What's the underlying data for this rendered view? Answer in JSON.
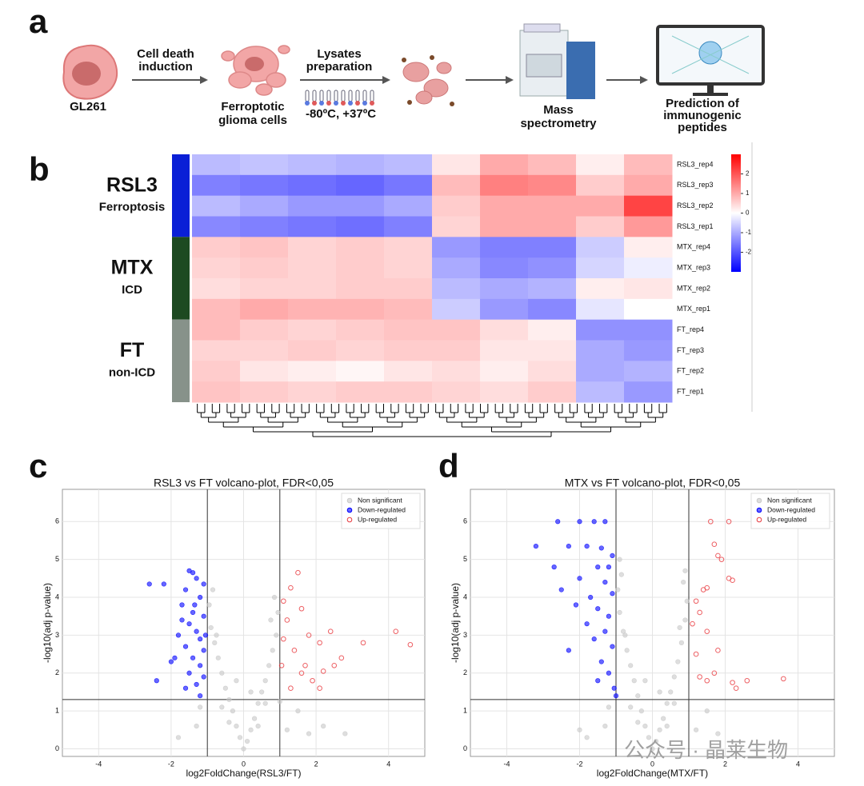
{
  "workflow": {
    "panel_label": "a",
    "cell": "GL261",
    "step1": [
      "Cell death",
      "induction"
    ],
    "ferroptotic": [
      "Ferroptotic",
      "glioma cells"
    ],
    "step2": [
      "Lysates",
      "preparation"
    ],
    "temperature": "-80ºC, +37ºC",
    "mass_spec": [
      "Mass",
      "spectrometry"
    ],
    "prediction": [
      "Prediction of",
      "immunogenic",
      "peptides"
    ]
  },
  "watermark": "公众号 · 晶莱生物",
  "chart_data": [
    {
      "type": "heatmap",
      "panel_label": "b",
      "rows": [
        "RSL3_rep4",
        "RSL3_rep3",
        "RSL3_rep2",
        "RSL3_rep1",
        "MTX_rep4",
        "MTX_rep3",
        "MTX_rep2",
        "MTX_rep1",
        "FT_rep4",
        "FT_rep3",
        "FT_rep2",
        "FT_rep1"
      ],
      "categories": [
        null,
        null,
        null,
        null,
        null,
        null,
        null,
        null,
        null,
        null
      ],
      "values": [
        [
          -0.8,
          -0.7,
          -0.8,
          -0.9,
          -0.8,
          0.3,
          1.0,
          0.8,
          0.2,
          0.8
        ],
        [
          -1.5,
          -1.6,
          -1.7,
          -1.8,
          -1.6,
          0.8,
          1.5,
          1.4,
          0.6,
          1.0
        ],
        [
          -0.8,
          -1.0,
          -1.2,
          -1.2,
          -1.0,
          0.6,
          1.0,
          1.0,
          1.0,
          2.2
        ],
        [
          -1.4,
          -1.5,
          -1.6,
          -1.7,
          -1.5,
          0.5,
          1.0,
          1.0,
          0.6,
          1.2
        ],
        [
          0.6,
          0.7,
          0.5,
          0.6,
          0.5,
          -1.2,
          -1.5,
          -1.5,
          -0.6,
          0.2
        ],
        [
          0.5,
          0.6,
          0.5,
          0.6,
          0.5,
          -1.0,
          -1.4,
          -1.3,
          -0.5,
          -0.2
        ],
        [
          0.4,
          0.5,
          0.5,
          0.6,
          0.6,
          -0.8,
          -1.0,
          -0.9,
          0.2,
          0.3
        ],
        [
          0.8,
          1.0,
          0.9,
          0.9,
          0.8,
          -0.6,
          -1.2,
          -1.4,
          -0.3,
          0.0
        ],
        [
          0.8,
          0.6,
          0.5,
          0.6,
          0.7,
          0.7,
          0.4,
          0.2,
          -1.3,
          -1.3
        ],
        [
          0.5,
          0.5,
          0.6,
          0.5,
          0.6,
          0.6,
          0.3,
          0.3,
          -1.0,
          -1.2
        ],
        [
          0.6,
          0.3,
          0.2,
          0.1,
          0.3,
          0.4,
          0.2,
          0.4,
          -1.0,
          -0.9
        ],
        [
          0.7,
          0.6,
          0.5,
          0.6,
          0.6,
          0.5,
          0.4,
          0.6,
          -0.8,
          -1.2
        ]
      ],
      "colors": [
        "#0000ff",
        "#ffffff",
        "#ff0000"
      ],
      "zlim": [
        -3,
        3
      ],
      "zticks": [
        -2,
        -1,
        0,
        1,
        2
      ],
      "groups": [
        {
          "name": "RSL3",
          "label": "Ferroptosis",
          "color": "#0a1fd6"
        },
        {
          "name": "MTX",
          "label": "ICD",
          "color": "#1d4a21"
        },
        {
          "name": "FT",
          "label": "non-ICD",
          "color": "#87928a"
        }
      ]
    },
    {
      "type": "scatter",
      "panel_label": "c",
      "title": "RSL3 vs FT volcano-plot, FDR<0,05",
      "x_label": "log2FoldChange(RSL3/FT)",
      "y_label": "-log10(adj p-value)",
      "xlim": [
        -5,
        5
      ],
      "ylim": [
        -0.2,
        6.85
      ],
      "xticks": [
        -4,
        -2,
        0,
        2,
        4
      ],
      "yticks": [
        0,
        1,
        2,
        3,
        4,
        5,
        6
      ],
      "grid": true,
      "legend": "upper right",
      "vlines": [
        -1,
        1
      ],
      "hline": 1.3,
      "series": [
        {
          "name": "Non significant",
          "color": "#c8c8c8",
          "filled": true,
          "x": [
            0,
            0.1,
            -0.1,
            0.2,
            -0.2,
            0.3,
            -0.3,
            0.4,
            -0.4,
            0.5,
            -0.5,
            0.6,
            -0.6,
            0.7,
            -0.7,
            0.8,
            -0.8,
            0.9,
            -0.9,
            0.95,
            -0.95,
            0.85,
            -0.85,
            0.6,
            -0.6,
            0.4,
            -0.4,
            1.2,
            1.8,
            2.8,
            -1.3,
            -1.8,
            1.5,
            -1.2,
            0.2,
            -0.2,
            0.75,
            -0.75,
            2.2,
            1.0
          ],
          "values": [
            0,
            0.2,
            0.3,
            0.5,
            0.6,
            0.8,
            1.0,
            1.2,
            1.3,
            1.5,
            1.6,
            1.8,
            2.0,
            2.2,
            2.4,
            2.6,
            2.8,
            3.0,
            3.2,
            3.6,
            3.8,
            4.0,
            4.2,
            1.2,
            1.1,
            0.6,
            0.7,
            0.5,
            0.4,
            0.4,
            0.6,
            0.3,
            1.0,
            1.1,
            1.5,
            1.8,
            3.4,
            3.0,
            0.6,
            1.25
          ]
        },
        {
          "name": "Down-regulated",
          "color": "#0000ff",
          "filled": true,
          "x": [
            -2.6,
            -2.2,
            -2.0,
            -2.4,
            -1.5,
            -1.4,
            -1.3,
            -1.6,
            -1.1,
            -1.2,
            -1.7,
            -1.4,
            -1.1,
            -1.5,
            -1.3,
            -1.8,
            -1.2,
            -1.6,
            -1.1,
            -1.4,
            -1.9,
            -1.2,
            -1.5,
            -1.1,
            -1.3,
            -1.6,
            -1.2,
            -1.7,
            -1.05,
            -1.35
          ],
          "values": [
            4.35,
            4.35,
            2.3,
            1.8,
            4.7,
            4.65,
            4.5,
            4.2,
            4.35,
            4.0,
            3.8,
            3.6,
            3.5,
            3.3,
            3.1,
            3.0,
            2.9,
            2.7,
            2.6,
            2.4,
            2.4,
            2.2,
            2.0,
            1.9,
            1.7,
            1.6,
            1.4,
            3.4,
            3.0,
            3.8
          ]
        },
        {
          "name": "Up-regulated",
          "color": "#e8383d",
          "filled": false,
          "x": [
            4.6,
            4.2,
            3.3,
            2.7,
            2.5,
            2.4,
            2.2,
            1.7,
            1.6,
            1.5,
            1.3,
            1.6,
            1.8,
            1.2,
            1.1,
            1.4,
            1.05,
            1.9,
            1.3,
            2.1,
            1.1,
            2.1
          ],
          "values": [
            2.75,
            3.1,
            2.8,
            2.4,
            2.2,
            3.1,
            2.05,
            2.2,
            2.0,
            4.65,
            4.25,
            3.7,
            3.0,
            3.4,
            2.9,
            2.6,
            2.2,
            1.8,
            1.6,
            1.6,
            3.9,
            2.8
          ]
        }
      ]
    },
    {
      "type": "scatter",
      "panel_label": "d",
      "title": "MTX vs FT volcano-plot, FDR<0,05",
      "x_label": "log2FoldChange(MTX/FT)",
      "y_label": "-log10(adj p-value)",
      "xlim": [
        -5,
        5
      ],
      "ylim": [
        -0.2,
        6.85
      ],
      "xticks": [
        -4,
        -2,
        0,
        2,
        4
      ],
      "yticks": [
        0,
        1,
        2,
        3,
        4,
        5,
        6
      ],
      "grid": true,
      "legend": "upper right",
      "vlines": [
        -1,
        1
      ],
      "hline": 1.3,
      "series": [
        {
          "name": "Non significant",
          "color": "#c8c8c8",
          "filled": true,
          "x": [
            0,
            0.1,
            -0.1,
            0.2,
            -0.2,
            0.3,
            -0.3,
            0.4,
            -0.4,
            0.5,
            -0.5,
            0.6,
            -0.6,
            0.7,
            -0.7,
            0.8,
            -0.8,
            0.9,
            -0.9,
            0.95,
            -0.95,
            0.85,
            -0.85,
            0.6,
            -0.6,
            0.4,
            -0.4,
            1.2,
            1.8,
            -2.0,
            -1.3,
            -1.8,
            1.5,
            -1.2,
            0.2,
            -0.2,
            0.75,
            -0.75,
            0.9,
            -0.9
          ],
          "values": [
            0,
            0.2,
            0.3,
            0.5,
            0.6,
            0.8,
            1.0,
            1.2,
            1.4,
            1.5,
            1.8,
            1.9,
            2.2,
            2.3,
            2.6,
            2.8,
            3.1,
            3.4,
            3.6,
            3.9,
            4.2,
            4.4,
            4.6,
            1.2,
            1.1,
            0.6,
            0.7,
            0.5,
            0.4,
            0.5,
            0.6,
            0.3,
            1.0,
            1.1,
            1.5,
            1.8,
            3.2,
            3.0,
            4.7,
            5.0
          ]
        },
        {
          "name": "Down-regulated",
          "color": "#0000ff",
          "filled": true,
          "x": [
            -3.2,
            -2.6,
            -2.0,
            -1.6,
            -1.3,
            -2.3,
            -1.8,
            -1.4,
            -1.1,
            -2.7,
            -1.5,
            -1.2,
            -2.5,
            -2.0,
            -1.3,
            -1.7,
            -1.1,
            -2.1,
            -1.5,
            -1.2,
            -1.8,
            -1.3,
            -2.3,
            -1.6,
            -1.1,
            -1.4,
            -1.2,
            -1.5,
            -1.05,
            -1.0
          ],
          "values": [
            5.35,
            6.0,
            6.0,
            6.0,
            6.0,
            5.35,
            5.35,
            5.3,
            5.1,
            4.8,
            4.8,
            4.8,
            4.2,
            4.5,
            4.4,
            4.0,
            4.1,
            3.8,
            3.7,
            3.5,
            3.3,
            3.1,
            2.6,
            2.9,
            2.7,
            2.3,
            2.0,
            1.8,
            1.6,
            1.4
          ]
        },
        {
          "name": "Up-regulated",
          "color": "#e8383d",
          "filled": false,
          "x": [
            1.6,
            2.1,
            1.7,
            1.8,
            1.9,
            2.1,
            2.2,
            1.5,
            1.4,
            1.2,
            1.3,
            1.1,
            1.5,
            1.8,
            1.2,
            1.7,
            1.5,
            2.2,
            2.6,
            3.6,
            1.3,
            2.3
          ],
          "values": [
            6.0,
            6.0,
            5.4,
            5.1,
            5.0,
            4.5,
            4.45,
            4.25,
            4.2,
            3.9,
            3.6,
            3.3,
            3.1,
            2.6,
            2.5,
            2.0,
            1.8,
            1.75,
            1.8,
            1.85,
            1.9,
            1.6
          ]
        }
      ]
    }
  ]
}
